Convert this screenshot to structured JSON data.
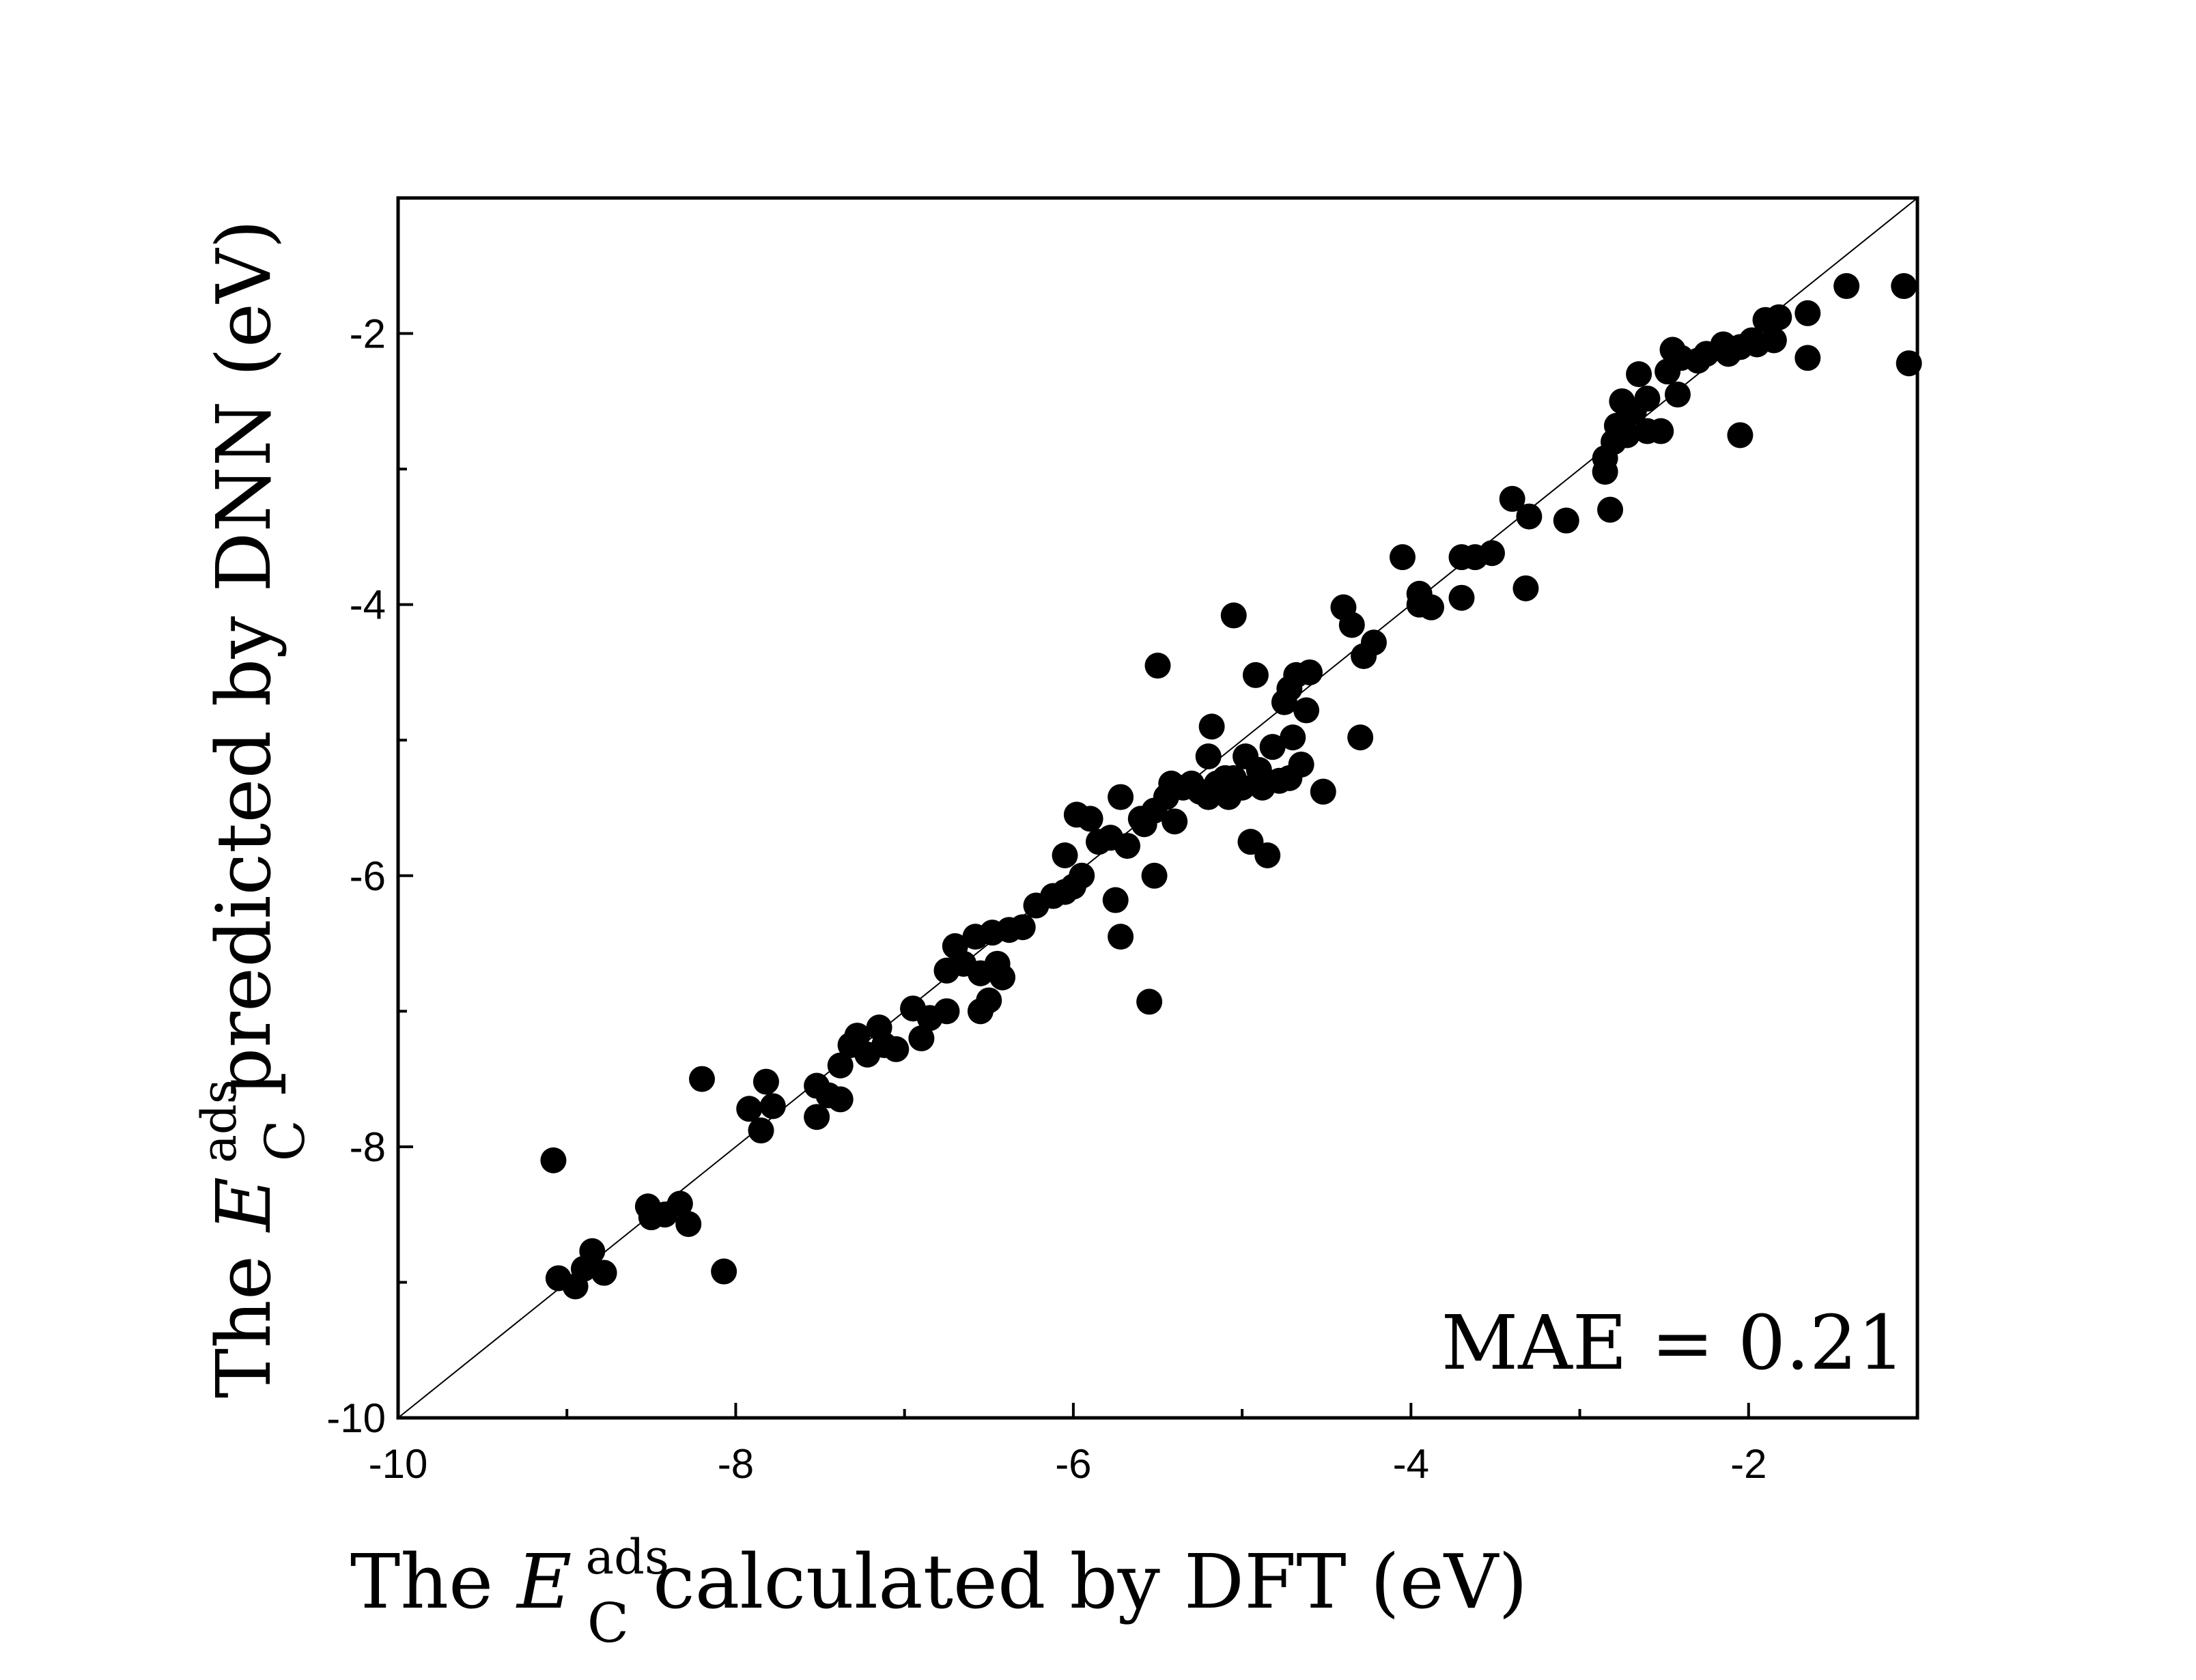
{
  "chart_data": {
    "type": "scatter",
    "xlim": [
      -10,
      -1
    ],
    "ylim": [
      -10,
      -1
    ],
    "x_ticks": [
      "-10",
      "-8",
      "-6",
      "-4",
      "-2"
    ],
    "y_ticks": [
      "-10",
      "-8",
      "-6",
      "-4",
      "-2"
    ],
    "grid": false,
    "legend": "none",
    "marker_color": "#000000",
    "reference_line": "y = x",
    "xlabel": {
      "prefix": "The ",
      "symbol": "E",
      "superscript": "ads",
      "subscript": "C",
      "suffix": " calculated by DFT (eV)"
    },
    "ylabel": {
      "prefix": "The ",
      "symbol": "E",
      "superscript": "ads",
      "subscript": "C",
      "suffix": " predicted by DNN (eV)"
    },
    "annotation": "MAE = 0.21",
    "points": [
      [
        -9.08,
        -8.1
      ],
      [
        -9.05,
        -8.97
      ],
      [
        -8.95,
        -9.03
      ],
      [
        -8.9,
        -8.9
      ],
      [
        -8.85,
        -8.77
      ],
      [
        -8.78,
        -8.93
      ],
      [
        -8.52,
        -8.44
      ],
      [
        -8.5,
        -8.52
      ],
      [
        -8.42,
        -8.5
      ],
      [
        -8.33,
        -8.42
      ],
      [
        -8.28,
        -8.57
      ],
      [
        -8.2,
        -7.5
      ],
      [
        -8.07,
        -8.92
      ],
      [
        -7.92,
        -7.72
      ],
      [
        -7.85,
        -7.88
      ],
      [
        -7.82,
        -7.52
      ],
      [
        -7.78,
        -7.7
      ],
      [
        -7.52,
        -7.78
      ],
      [
        -7.52,
        -7.55
      ],
      [
        -7.45,
        -7.62
      ],
      [
        -7.38,
        -7.65
      ],
      [
        -7.38,
        -7.4
      ],
      [
        -7.32,
        -7.25
      ],
      [
        -7.28,
        -7.18
      ],
      [
        -7.22,
        -7.32
      ],
      [
        -7.15,
        -7.12
      ],
      [
        -7.12,
        -7.25
      ],
      [
        -7.05,
        -7.28
      ],
      [
        -6.95,
        -6.98
      ],
      [
        -6.9,
        -7.2
      ],
      [
        -6.85,
        -7.05
      ],
      [
        -6.75,
        -7.0
      ],
      [
        -6.75,
        -6.7
      ],
      [
        -6.7,
        -6.52
      ],
      [
        -6.65,
        -6.65
      ],
      [
        -6.58,
        -6.45
      ],
      [
        -6.55,
        -6.72
      ],
      [
        -6.55,
        -7.0
      ],
      [
        -6.5,
        -6.92
      ],
      [
        -6.48,
        -6.42
      ],
      [
        -6.45,
        -6.65
      ],
      [
        -6.42,
        -6.75
      ],
      [
        -6.38,
        -6.4
      ],
      [
        -6.3,
        -6.38
      ],
      [
        -6.22,
        -6.22
      ],
      [
        -6.12,
        -6.15
      ],
      [
        -6.05,
        -6.12
      ],
      [
        -6.05,
        -5.85
      ],
      [
        -6.0,
        -6.08
      ],
      [
        -5.98,
        -5.55
      ],
      [
        -5.95,
        -6.0
      ],
      [
        -5.9,
        -5.58
      ],
      [
        -5.85,
        -5.75
      ],
      [
        -5.78,
        -5.72
      ],
      [
        -5.75,
        -6.18
      ],
      [
        -5.72,
        -6.45
      ],
      [
        -5.72,
        -5.42
      ],
      [
        -5.68,
        -5.78
      ],
      [
        -5.6,
        -5.58
      ],
      [
        -5.58,
        -5.62
      ],
      [
        -5.55,
        -6.93
      ],
      [
        -5.52,
        -6.0
      ],
      [
        -5.52,
        -5.52
      ],
      [
        -5.5,
        -4.45
      ],
      [
        -5.45,
        -5.42
      ],
      [
        -5.42,
        -5.32
      ],
      [
        -5.4,
        -5.6
      ],
      [
        -5.35,
        -5.35
      ],
      [
        -5.3,
        -5.32
      ],
      [
        -5.25,
        -5.38
      ],
      [
        -5.2,
        -5.42
      ],
      [
        -5.2,
        -5.12
      ],
      [
        -5.18,
        -4.9
      ],
      [
        -5.15,
        -5.32
      ],
      [
        -5.1,
        -5.28
      ],
      [
        -5.08,
        -5.42
      ],
      [
        -5.05,
        -5.28
      ],
      [
        -5.05,
        -4.08
      ],
      [
        -5.0,
        -5.35
      ],
      [
        -4.98,
        -5.12
      ],
      [
        -4.95,
        -5.75
      ],
      [
        -4.92,
        -4.52
      ],
      [
        -4.9,
        -5.22
      ],
      [
        -4.88,
        -5.35
      ],
      [
        -4.85,
        -5.85
      ],
      [
        -4.82,
        -5.05
      ],
      [
        -4.78,
        -5.3
      ],
      [
        -4.75,
        -4.72
      ],
      [
        -4.72,
        -4.62
      ],
      [
        -4.72,
        -5.28
      ],
      [
        -4.7,
        -4.98
      ],
      [
        -4.68,
        -4.52
      ],
      [
        -4.65,
        -5.18
      ],
      [
        -4.62,
        -4.78
      ],
      [
        -4.6,
        -4.5
      ],
      [
        -4.52,
        -5.38
      ],
      [
        -4.4,
        -4.02
      ],
      [
        -4.35,
        -4.15
      ],
      [
        -4.3,
        -4.98
      ],
      [
        -4.28,
        -4.38
      ],
      [
        -4.22,
        -4.28
      ],
      [
        -4.05,
        -3.65
      ],
      [
        -3.95,
        -4.0
      ],
      [
        -3.95,
        -3.92
      ],
      [
        -3.88,
        -4.02
      ],
      [
        -3.7,
        -3.95
      ],
      [
        -3.7,
        -3.65
      ],
      [
        -3.62,
        -3.65
      ],
      [
        -3.52,
        -3.62
      ],
      [
        -3.4,
        -3.22
      ],
      [
        -3.32,
        -3.88
      ],
      [
        -3.3,
        -3.35
      ],
      [
        -3.08,
        -3.38
      ],
      [
        -2.85,
        -2.92
      ],
      [
        -2.85,
        -3.02
      ],
      [
        -2.82,
        -3.3
      ],
      [
        -2.8,
        -2.8
      ],
      [
        -2.78,
        -2.68
      ],
      [
        -2.75,
        -2.5
      ],
      [
        -2.72,
        -2.75
      ],
      [
        -2.68,
        -2.58
      ],
      [
        -2.65,
        -2.3
      ],
      [
        -2.6,
        -2.72
      ],
      [
        -2.6,
        -2.48
      ],
      [
        -2.52,
        -2.72
      ],
      [
        -2.48,
        -2.28
      ],
      [
        -2.45,
        -2.12
      ],
      [
        -2.42,
        -2.45
      ],
      [
        -2.4,
        -2.18
      ],
      [
        -2.3,
        -2.2
      ],
      [
        -2.25,
        -2.15
      ],
      [
        -2.15,
        -2.08
      ],
      [
        -2.12,
        -2.15
      ],
      [
        -2.05,
        -2.75
      ],
      [
        -2.05,
        -2.1
      ],
      [
        -1.98,
        -2.05
      ],
      [
        -1.95,
        -2.08
      ],
      [
        -1.9,
        -1.9
      ],
      [
        -1.85,
        -2.05
      ],
      [
        -1.82,
        -1.88
      ],
      [
        -1.65,
        -2.18
      ],
      [
        -1.65,
        -1.85
      ],
      [
        -1.42,
        -1.65
      ],
      [
        -1.08,
        -1.65
      ],
      [
        -1.05,
        -2.22
      ]
    ]
  }
}
